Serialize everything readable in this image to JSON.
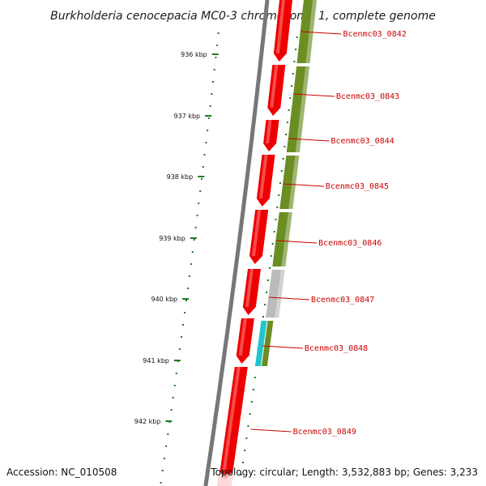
{
  "title": "Burkholderia cenocepacia MC0-3 chromosome 1, complete genome",
  "accession": "Accession: NC_010508",
  "topology": "Topology: circular; Length: 3,532,883 bp; Genes: 3,233",
  "colors": {
    "backbone": "#777777",
    "cds": "#ee0000",
    "cds_highlight": "#ff8888",
    "cog_green": "#6b8e23",
    "cog_gray": "#bbbbbb",
    "cog_cyan": "#22c4cc",
    "tick": "#1f7a1f",
    "label_line": "#cc0000"
  },
  "ticks": [
    {
      "label": "936 kbp"
    },
    {
      "label": "937 kbp"
    },
    {
      "label": "938 kbp"
    },
    {
      "label": "939 kbp"
    },
    {
      "label": "940 kbp"
    },
    {
      "label": "941 kbp"
    },
    {
      "label": "942 kbp"
    }
  ],
  "genes": [
    {
      "name": "Bcenmc03_0842",
      "cog": "cog_green"
    },
    {
      "name": "Bcenmc03_0843",
      "cog": "cog_green"
    },
    {
      "name": "Bcenmc03_0844",
      "cog": "cog_green"
    },
    {
      "name": "Bcenmc03_0845",
      "cog": "cog_green"
    },
    {
      "name": "Bcenmc03_0846",
      "cog": "cog_gray"
    },
    {
      "name": "Bcenmc03_0847",
      "cog": "cog_cyan"
    },
    {
      "name": "Bcenmc03_0848",
      "cog": "cog_cyan"
    },
    {
      "name": "Bcenmc03_0849",
      "cog": "none"
    }
  ]
}
